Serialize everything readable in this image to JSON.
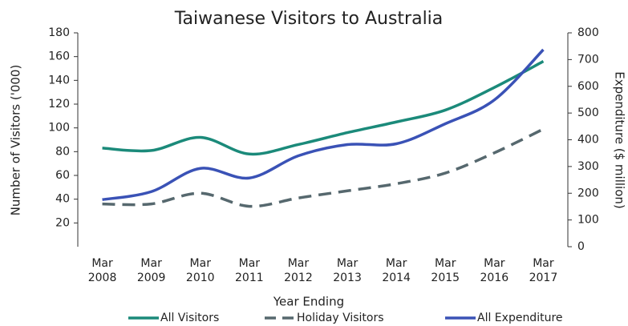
{
  "chart_data": {
    "type": "line",
    "title": "Taiwanese Visitors to Australia",
    "x_label": "Year Ending",
    "y_label": "Number of Visitors ('000)",
    "y2_label": "Expenditure ($ million)",
    "categories": [
      "Mar 2008",
      "Mar 2009",
      "Mar 2010",
      "Mar 2011",
      "Mar 2012",
      "Mar 2013",
      "Mar 2014",
      "Mar 2015",
      "Mar 2016",
      "Mar 2017"
    ],
    "series": [
      {
        "name": "All Visitors",
        "color": "#1b8a7a",
        "values": [
          83,
          81,
          92,
          78,
          86,
          96,
          105,
          115,
          134,
          156
        ]
      },
      {
        "name": "Holiday Visitors",
        "color": "#56686e",
        "dashed": true,
        "values": [
          36,
          36,
          45,
          34,
          41,
          47,
          53,
          62,
          79,
          99
        ]
      },
      {
        "name": "All Expenditure",
        "color": "#3a52b6",
        "axis": "y2",
        "values": [
          176,
          206,
          293,
          257,
          340,
          382,
          385,
          460,
          549,
          737
        ]
      }
    ],
    "ylim": [
      0,
      180
    ],
    "yticks": [
      20,
      40,
      60,
      80,
      100,
      120,
      140,
      160,
      180
    ],
    "y2lim": [
      0,
      800
    ],
    "y2ticks": [
      0,
      100,
      200,
      300,
      400,
      500,
      600,
      700,
      800
    ],
    "legend": "bottom"
  }
}
